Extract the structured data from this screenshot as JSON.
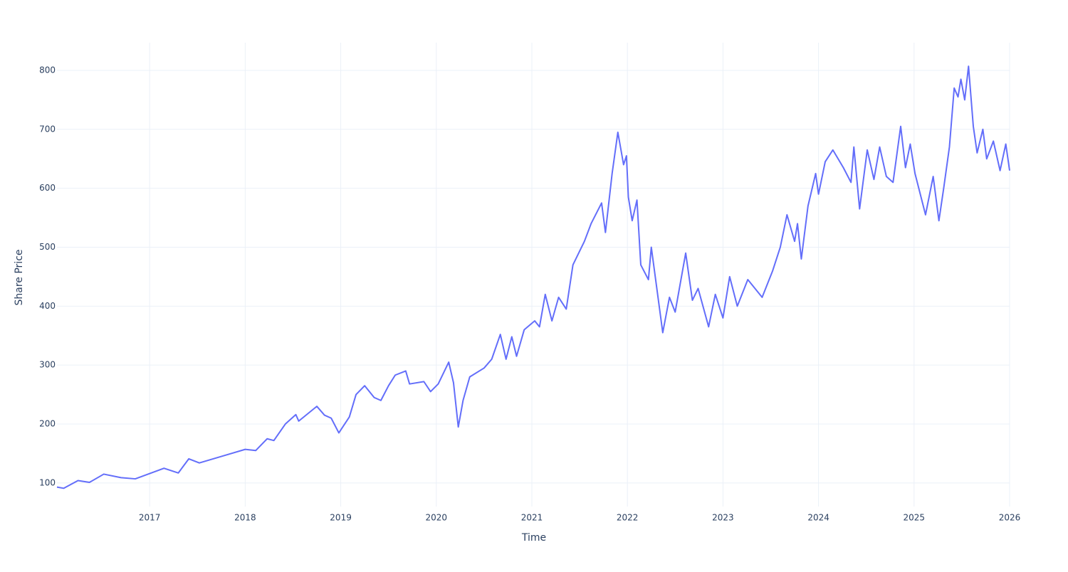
{
  "chart_data": {
    "type": "line",
    "xlabel": "Time",
    "ylabel": "Share Price",
    "x": [
      2016.03,
      2016.1,
      2016.25,
      2016.37,
      2016.52,
      2016.7,
      2016.85,
      2017.15,
      2017.3,
      2017.41,
      2017.52,
      2017.75,
      2018.0,
      2018.11,
      2018.23,
      2018.3,
      2018.42,
      2018.53,
      2018.56,
      2018.75,
      2018.83,
      2018.9,
      2018.98,
      2019.09,
      2019.16,
      2019.25,
      2019.35,
      2019.42,
      2019.5,
      2019.57,
      2019.68,
      2019.72,
      2019.87,
      2019.94,
      2020.02,
      2020.13,
      2020.18,
      2020.23,
      2020.28,
      2020.35,
      2020.5,
      2020.58,
      2020.67,
      2020.73,
      2020.79,
      2020.84,
      2020.92,
      2021.03,
      2021.08,
      2021.14,
      2021.21,
      2021.28,
      2021.36,
      2021.43,
      2021.55,
      2021.62,
      2021.73,
      2021.77,
      2021.84,
      2021.9,
      2021.96,
      2021.99,
      2022.01,
      2022.05,
      2022.1,
      2022.14,
      2022.22,
      2022.25,
      2022.37,
      2022.44,
      2022.5,
      2022.61,
      2022.68,
      2022.74,
      2022.85,
      2022.92,
      2023.0,
      2023.07,
      2023.15,
      2023.26,
      2023.41,
      2023.52,
      2023.6,
      2023.67,
      2023.75,
      2023.78,
      2023.82,
      2023.89,
      2023.97,
      2024.0,
      2024.07,
      2024.15,
      2024.26,
      2024.34,
      2024.37,
      2024.43,
      2024.51,
      2024.58,
      2024.64,
      2024.71,
      2024.78,
      2024.86,
      2024.91,
      2024.96,
      2025.01,
      2025.12,
      2025.2,
      2025.26,
      2025.31,
      2025.37,
      2025.42,
      2025.46,
      2025.49,
      2025.53,
      2025.57,
      2025.62,
      2025.66,
      2025.72,
      2025.76,
      2025.83,
      2025.9,
      2025.96,
      2026.0
    ],
    "series": [
      {
        "color": "#636efa",
        "values": [
          93,
          91,
          104,
          101,
          115,
          109,
          107,
          125,
          117,
          141,
          134,
          145,
          157,
          155,
          175,
          172,
          200,
          216,
          205,
          230,
          215,
          210,
          185,
          212,
          250,
          265,
          245,
          240,
          265,
          283,
          290,
          268,
          272,
          255,
          268,
          305,
          270,
          195,
          240,
          280,
          295,
          310,
          352,
          310,
          348,
          315,
          360,
          375,
          365,
          420,
          375,
          415,
          395,
          470,
          510,
          540,
          575,
          525,
          625,
          695,
          640,
          655,
          585,
          545,
          580,
          470,
          445,
          500,
          355,
          415,
          390,
          490,
          410,
          430,
          365,
          420,
          380,
          450,
          400,
          445,
          415,
          460,
          500,
          555,
          510,
          540,
          480,
          570,
          625,
          590,
          645,
          665,
          635,
          610,
          670,
          565,
          665,
          615,
          670,
          620,
          610,
          705,
          635,
          675,
          625,
          555,
          620,
          545,
          600,
          670,
          770,
          755,
          785,
          750,
          807,
          705,
          660,
          700,
          650,
          680,
          630,
          675,
          630
        ]
      }
    ],
    "xlim": [
      2016.03,
      2026.0
    ],
    "xticks": [
      2017,
      2018,
      2019,
      2020,
      2021,
      2022,
      2023,
      2024,
      2025,
      2026
    ],
    "ylim": [
      60,
      847
    ],
    "yticks": [
      100,
      200,
      300,
      400,
      500,
      600,
      700,
      800
    ],
    "grid": true
  }
}
